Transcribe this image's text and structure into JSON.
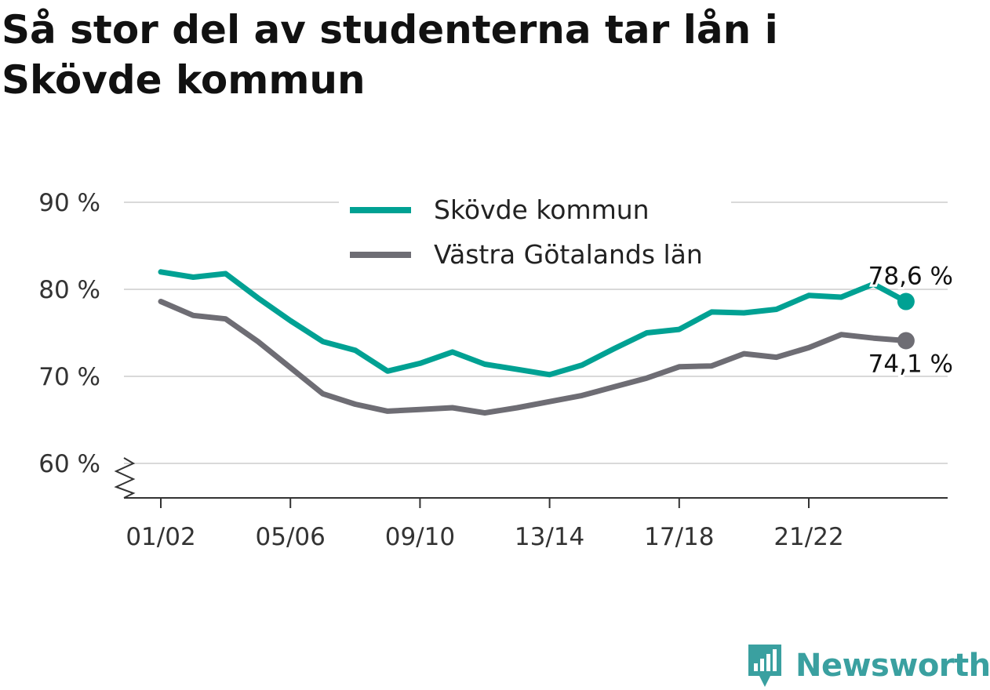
{
  "title": "Så stor del av studenterna tar lån i Skövde kommun",
  "brand": {
    "name": "Newsworthy"
  },
  "colors": {
    "skovde": "#00a193",
    "vg": "#6e6d74",
    "grid": "#d9d9d9",
    "axis": "#333333",
    "text": "#333333"
  },
  "chart_data": {
    "type": "line",
    "x": [
      "01/02",
      "02/03",
      "03/04",
      "04/05",
      "05/06",
      "06/07",
      "07/08",
      "08/09",
      "09/10",
      "10/11",
      "11/12",
      "12/13",
      "13/14",
      "14/15",
      "15/16",
      "16/17",
      "17/18",
      "18/19",
      "19/20",
      "20/21",
      "21/22",
      "22/23",
      "23/24",
      "24/25"
    ],
    "x_ticks": [
      "01/02",
      "05/06",
      "09/10",
      "13/14",
      "17/18",
      "21/22"
    ],
    "y_ticks": [
      60,
      70,
      80,
      90
    ],
    "y_tick_labels": [
      "60 %",
      "70 %",
      "80 %",
      "90 %"
    ],
    "ylim": [
      60,
      90
    ],
    "y_axis_break": true,
    "grid": true,
    "legend_position": "top-center",
    "series": [
      {
        "name": "Skövde kommun",
        "color": "#00a193",
        "values": [
          82.0,
          81.4,
          81.8,
          79.0,
          76.4,
          74.0,
          73.0,
          70.6,
          71.5,
          72.8,
          71.4,
          70.8,
          70.2,
          71.3,
          73.2,
          75.0,
          75.4,
          77.4,
          77.3,
          77.7,
          79.3,
          79.1,
          80.6,
          78.6
        ],
        "end_label": "78,6 %"
      },
      {
        "name": "Västra Götalands län",
        "color": "#6e6d74",
        "values": [
          78.6,
          77.0,
          76.6,
          74.0,
          71.0,
          68.0,
          66.8,
          66.0,
          66.2,
          66.4,
          65.8,
          66.4,
          67.1,
          67.8,
          68.8,
          69.8,
          71.1,
          71.2,
          72.6,
          72.2,
          73.3,
          74.8,
          74.4,
          74.1
        ],
        "end_label": "74,1 %"
      }
    ]
  }
}
